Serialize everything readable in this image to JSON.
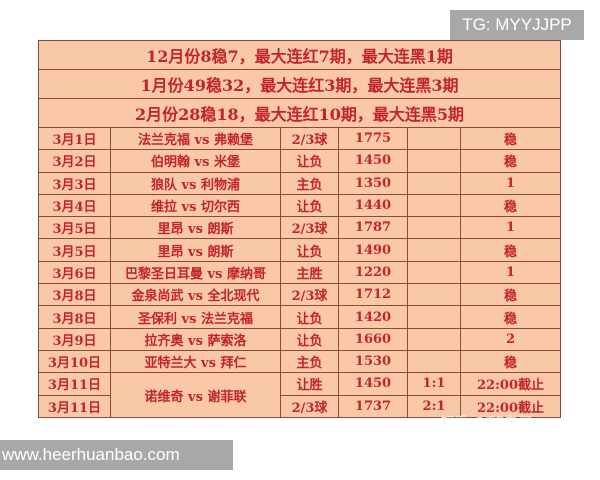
{
  "watermark_tg": "TG: MYYJJPP",
  "watermark_site": "www.heerhuanbao.com",
  "watermark_zhihu": "知乎 @TC老何",
  "summary": [
    "12月份8稳7，最大连红7期，最大连黑1期",
    "1月份49稳32，最大连红3期，最大连黑3期",
    "2月份28稳18，最大连红10期，最大连黑5期"
  ],
  "rows": [
    {
      "date": "3月1日",
      "match": "法兰克福 vs 弗赖堡",
      "pick": "2/3球",
      "num": "1775",
      "score": "",
      "result": "稳"
    },
    {
      "date": "3月2日",
      "match": "伯明翰 vs 米堡",
      "pick": "让负",
      "num": "1450",
      "score": "",
      "result": "稳"
    },
    {
      "date": "3月3日",
      "match": "狼队 vs 利物浦",
      "pick": "主负",
      "num": "1350",
      "score": "",
      "result": "1"
    },
    {
      "date": "3月4日",
      "match": "维拉 vs 切尔西",
      "pick": "让负",
      "num": "1440",
      "score": "",
      "result": "稳"
    },
    {
      "date": "3月5日",
      "match": "里昂 vs 朗斯",
      "pick": "2/3球",
      "num": "1787",
      "score": "",
      "result": "1"
    },
    {
      "date": "3月5日",
      "match": "里昂 vs 朗斯",
      "pick": "让负",
      "num": "1490",
      "score": "",
      "result": "稳"
    },
    {
      "date": "3月6日",
      "match": "巴黎圣日耳曼 vs 摩纳哥",
      "pick": "主胜",
      "num": "1220",
      "score": "",
      "result": "1"
    },
    {
      "date": "3月8日",
      "match": "金泉尚武 vs 全北现代",
      "pick": "2/3球",
      "num": "1712",
      "score": "",
      "result": "稳"
    },
    {
      "date": "3月8日",
      "match": "圣保利 vs 法兰克福",
      "pick": "让负",
      "num": "1420",
      "score": "",
      "result": "稳"
    },
    {
      "date": "3月9日",
      "match": "拉齐奥 vs 萨索洛",
      "pick": "让负",
      "num": "1660",
      "score": "",
      "result": "2"
    },
    {
      "date": "3月10日",
      "match": "亚特兰大 vs 拜仁",
      "pick": "主负",
      "num": "1530",
      "score": "",
      "result": "稳"
    }
  ],
  "last": {
    "match": "诺维奇 vs 谢菲联",
    "rows": [
      {
        "date": "3月11日",
        "pick": "让胜",
        "num": "1450",
        "score": "1:1",
        "result": "22:00截止"
      },
      {
        "date": "3月11日",
        "pick": "2/3球",
        "num": "1737",
        "score": "2:1",
        "result": "22:00截止"
      }
    ]
  },
  "colors": {
    "cell_bg": "#f9c8a6",
    "text": "#c1252a",
    "border": "#8a4b3c"
  }
}
